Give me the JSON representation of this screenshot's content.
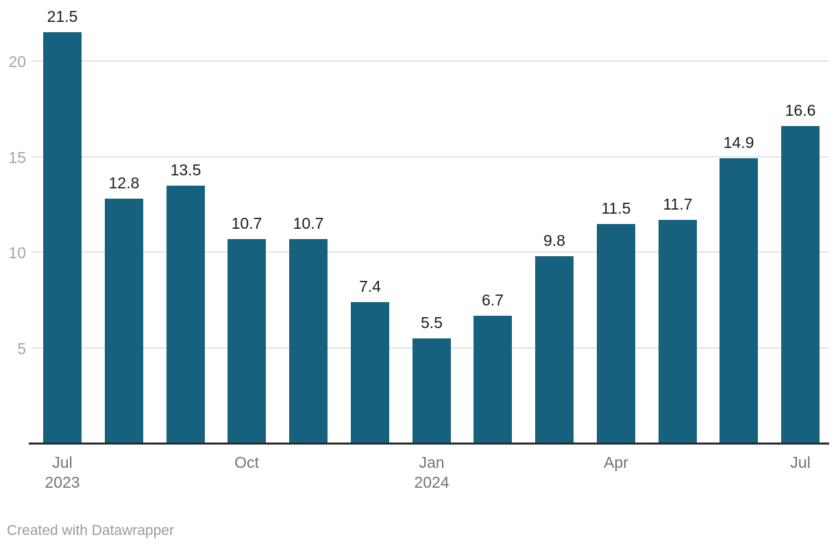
{
  "footer": {
    "credit": "Created with Datawrapper"
  },
  "chart_data": {
    "type": "bar",
    "title": "",
    "categories": [
      "Jul 2023",
      "Aug 2023",
      "Sep 2023",
      "Oct 2023",
      "Nov 2023",
      "Dec 2023",
      "Jan 2024",
      "Feb 2024",
      "Mar 2024",
      "Apr 2024",
      "May 2024",
      "Jun 2024",
      "Jul 2024"
    ],
    "values": [
      21.5,
      12.8,
      13.5,
      10.7,
      10.7,
      7.4,
      5.5,
      6.7,
      9.8,
      11.5,
      11.7,
      14.9,
      16.6
    ],
    "bar_labels": [
      "21.5",
      "12.8",
      "13.5",
      "10.7",
      "10.7",
      "7.4",
      "5.5",
      "6.7",
      "9.8",
      "11.5",
      "11.7",
      "14.9",
      "16.6"
    ],
    "x_tick_labels": [
      {
        "bar_index": 0,
        "lines": [
          "Jul",
          "2023"
        ]
      },
      {
        "bar_index": 3,
        "lines": [
          "Oct"
        ]
      },
      {
        "bar_index": 6,
        "lines": [
          "Jan",
          "2024"
        ]
      },
      {
        "bar_index": 9,
        "lines": [
          "Apr"
        ]
      },
      {
        "bar_index": 12,
        "lines": [
          "Jul"
        ]
      }
    ],
    "y_ticks": [
      5,
      10,
      15,
      20
    ],
    "ylim": [
      0,
      21.5
    ],
    "xlabel": "",
    "ylabel": "",
    "grid": "horizontal-only",
    "legend": "none",
    "colors": {
      "bar": "#16627E",
      "value_label": "#1d1d1d",
      "y_tick": "#a2a6a9",
      "x_tick": "#737373",
      "gridline": "#e3e3e3",
      "axis_line": "#2b2b2b",
      "footer_text": "#9b9b9b",
      "background": "#ffffff"
    }
  }
}
